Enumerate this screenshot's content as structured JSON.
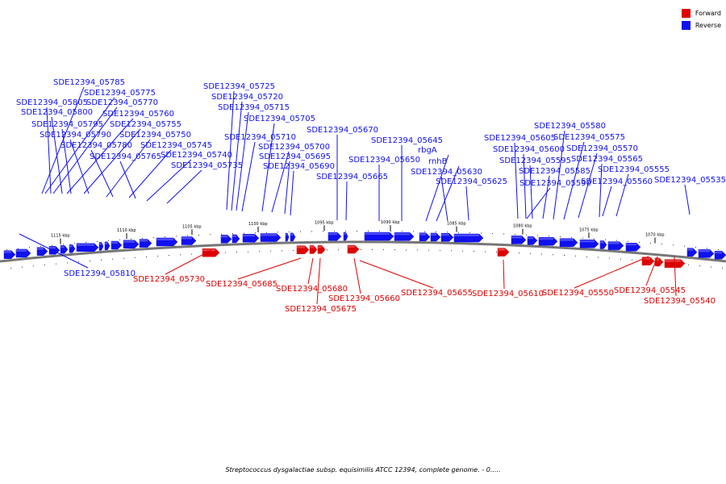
{
  "legend": {
    "forward_label": "Forward",
    "reverse_label": "Reverse",
    "forward_color": "#dd0000",
    "reverse_color": "#1010ee"
  },
  "caption": "Streptococcus dysgalactiae subsp. equisimilis ATCC 12394, complete genome. - 0.....",
  "scale_ticks": [
    "1115 kbp",
    "1110 kbp",
    "1105 kbp",
    "1100 kbp",
    "1095 kbp",
    "1090 kbp",
    "1085 kbp",
    "1080 kbp",
    "1075 kbp",
    "1070 kbp"
  ],
  "reverse_genes": [
    "SDE12394_05785",
    "SDE12394_05775",
    "SDE12394_05805",
    "SDE12394_05770",
    "SDE12394_05800",
    "SDE12394_05760",
    "SDE12394_05795",
    "SDE12394_05755",
    "SDE12394_05790",
    "SDE12394_05750",
    "SDE12394_05780",
    "SDE12394_05745",
    "SDE12394_05765",
    "SDE12394_05740",
    "SDE12394_05735",
    "SDE12394_05725",
    "SDE12394_05720",
    "SDE12394_05715",
    "SDE12394_05705",
    "SDE12394_05710",
    "SDE12394_05700",
    "SDE12394_05695",
    "SDE12394_05690",
    "SDE12394_05670",
    "SDE12394_05665",
    "SDE12394_05645",
    "rbgA",
    "SDE12394_05650",
    "rnhB",
    "SDE12394_05630",
    "SDE12394_05625",
    "SDE12394_05580",
    "SDE12394_05605",
    "SDE12394_05575",
    "SDE12394_05600",
    "SDE12394_05570",
    "SDE12394_05595",
    "SDE12394_05565",
    "SDE12394_05585",
    "SDE12394_05555",
    "SDE12394_05590",
    "SDE12394_05560",
    "SDE12394_05535",
    "SDE12394_05810"
  ],
  "forward_genes": [
    "SDE12394_05730",
    "SDE12394_05685",
    "SDE12394_05680",
    "SDE12394_05675",
    "SDE12394_05660",
    "SDE12394_05655",
    "SDE12394_05610",
    "SDE12394_05550",
    "SDE12394_05545",
    "SDE12394_05540"
  ]
}
